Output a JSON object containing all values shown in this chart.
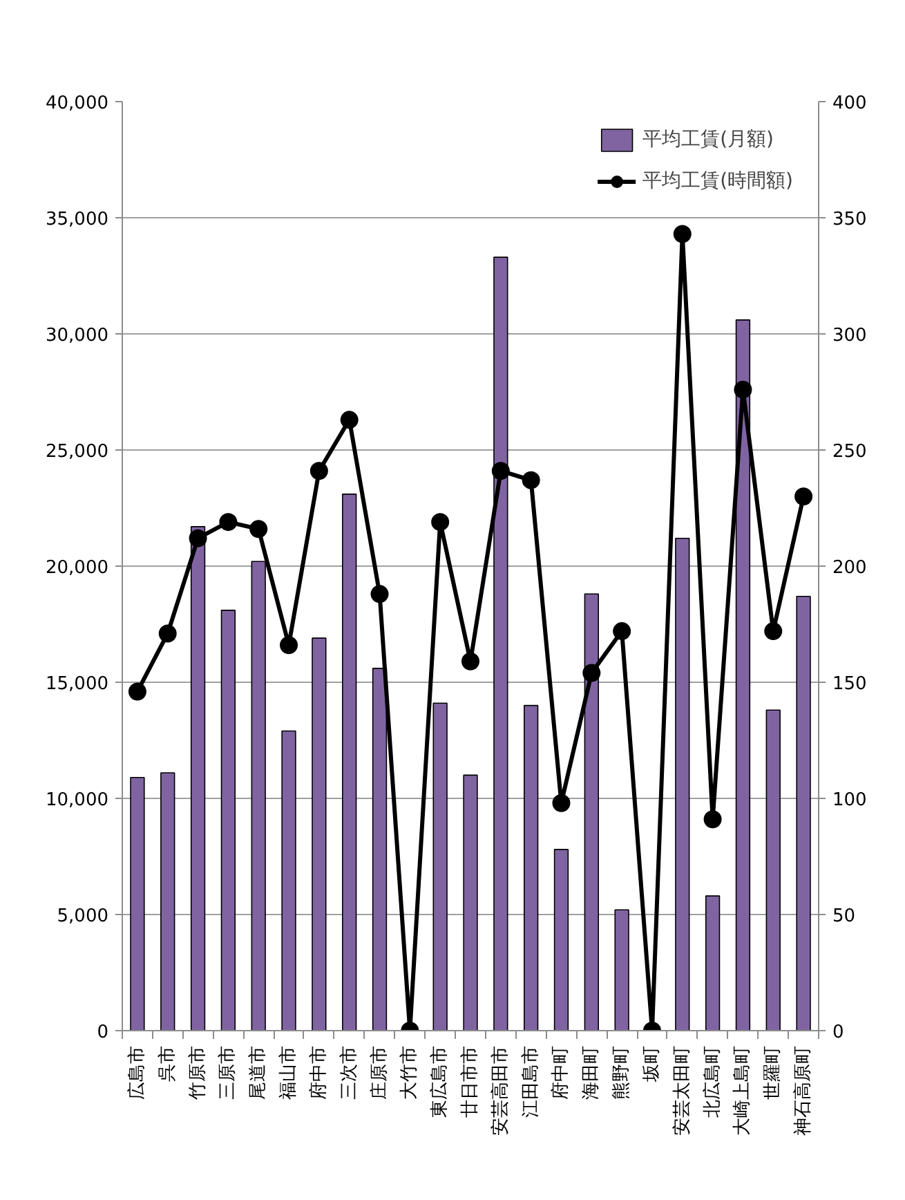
{
  "chart_data": {
    "type": "bar",
    "categories": [
      "広島市",
      "呉市",
      "竹原市",
      "三原市",
      "尾道市",
      "福山市",
      "府中市",
      "三次市",
      "庄原市",
      "大竹市",
      "東広島市",
      "廿日市市",
      "安芸高田市",
      "江田島市",
      "府中町",
      "海田町",
      "熊野町",
      "坂町",
      "安芸太田町",
      "北広島町",
      "大崎上島町",
      "世羅町",
      "神石高原町"
    ],
    "series": [
      {
        "name": "平均工賃(月額)",
        "color": "#8064a2",
        "values": [
          10900,
          11100,
          21700,
          18100,
          20200,
          12900,
          16900,
          23100,
          15600,
          null,
          14100,
          11000,
          33300,
          14000,
          7800,
          18800,
          5200,
          null,
          21200,
          5800,
          30600,
          13800,
          18700
        ]
      },
      {
        "name": "平均工賃(時間額)",
        "type": "line",
        "axis": "y2",
        "color": "#000000",
        "values": [
          146,
          171,
          212,
          219,
          216,
          166,
          241,
          263,
          188,
          0,
          219,
          159,
          241,
          237,
          98,
          154,
          172,
          0,
          343,
          91,
          276,
          172,
          230
        ]
      }
    ],
    "ylim": [
      0,
      40000
    ],
    "yticks": [
      {
        "value": 0,
        "label": "0"
      },
      {
        "value": 5000,
        "label": "5,000"
      },
      {
        "value": 10000,
        "label": "10,000"
      },
      {
        "value": 15000,
        "label": "15,000"
      },
      {
        "value": 20000,
        "label": "20,000"
      },
      {
        "value": 25000,
        "label": "25,000"
      },
      {
        "value": 30000,
        "label": "30,000"
      },
      {
        "value": 35000,
        "label": "35,000"
      },
      {
        "value": 40000,
        "label": "40,000"
      }
    ],
    "y2lim": [
      0,
      400
    ],
    "y2ticks": [
      0,
      50,
      100,
      150,
      200,
      250,
      300,
      350,
      400
    ],
    "grid": "y",
    "legend": "top right",
    "marker": "circle",
    "line_style": "solid"
  }
}
